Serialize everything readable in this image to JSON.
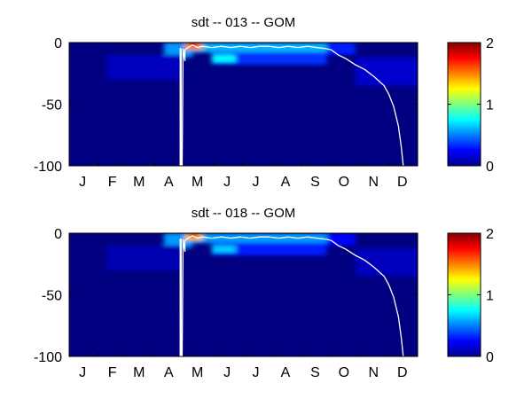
{
  "chart_data": [
    {
      "type": "heatmap",
      "title": "sdt -- 013 -- GOM",
      "xlabel": "",
      "ylabel": "",
      "x_tick_labels": [
        "J",
        "F",
        "M",
        "A",
        "M",
        "J",
        "J",
        "A",
        "S",
        "O",
        "N",
        "D"
      ],
      "x_tick_days": [
        15,
        46,
        74,
        105,
        135,
        166,
        196,
        227,
        258,
        288,
        319,
        349
      ],
      "xlim": [
        1,
        365
      ],
      "ylim": [
        -100,
        0
      ],
      "y_ticks": [
        0,
        -50,
        -100
      ],
      "colorbar": {
        "colormap": "jet",
        "range": [
          0,
          2
        ],
        "ticks": [
          0,
          1,
          2
        ]
      },
      "background_value": 0.0,
      "hotspots": [
        {
          "x_range": [
            100,
            130
          ],
          "y_range": [
            -12,
            0
          ],
          "value": 0.55
        },
        {
          "x_range": [
            130,
            270
          ],
          "y_range": [
            -8,
            0
          ],
          "value": 0.6
        },
        {
          "x_range": [
            122,
            140
          ],
          "y_range": [
            -6,
            0
          ],
          "value": 1.45
        },
        {
          "x_range": [
            127,
            135
          ],
          "y_range": [
            -4,
            0
          ],
          "value": 1.75
        },
        {
          "x_range": [
            150,
            270
          ],
          "y_range": [
            -18,
            -8
          ],
          "value": 0.35
        },
        {
          "x_range": [
            150,
            175
          ],
          "y_range": [
            -16,
            -10
          ],
          "value": 0.75
        },
        {
          "x_range": [
            270,
            300
          ],
          "y_range": [
            -10,
            0
          ],
          "value": 0.3
        },
        {
          "x_range": [
            40,
            120
          ],
          "y_range": [
            -30,
            -10
          ],
          "value": 0.12
        },
        {
          "x_range": [
            300,
            365
          ],
          "y_range": [
            -35,
            -12
          ],
          "value": 0.15
        }
      ],
      "contour_line": {
        "x": [
          117,
          117,
          118,
          118,
          119,
          120,
          122,
          122,
          125,
          130,
          135,
          140,
          150,
          160,
          170,
          180,
          190,
          200,
          210,
          220,
          230,
          240,
          250,
          260,
          270,
          275,
          282,
          290,
          300,
          310,
          320,
          330,
          335,
          340,
          345,
          348,
          350
        ],
        "y": [
          -100,
          -5,
          -5,
          -100,
          -100,
          -5,
          -15,
          -6,
          -4,
          -2,
          -4,
          -3,
          -4,
          -3,
          -4,
          -3,
          -4,
          -3,
          -3,
          -4,
          -3,
          -4,
          -3,
          -4,
          -5,
          -6,
          -10,
          -13,
          -18,
          -22,
          -28,
          -35,
          -42,
          -52,
          -68,
          -85,
          -100
        ]
      }
    },
    {
      "type": "heatmap",
      "title": "sdt -- 018 -- GOM",
      "xlabel": "",
      "ylabel": "",
      "x_tick_labels": [
        "J",
        "F",
        "M",
        "A",
        "M",
        "J",
        "J",
        "A",
        "S",
        "O",
        "N",
        "D"
      ],
      "x_tick_days": [
        15,
        46,
        74,
        105,
        135,
        166,
        196,
        227,
        258,
        288,
        319,
        349
      ],
      "xlim": [
        1,
        365
      ],
      "ylim": [
        -100,
        0
      ],
      "y_ticks": [
        0,
        -50,
        -100
      ],
      "colorbar": {
        "colormap": "jet",
        "range": [
          0,
          2
        ],
        "ticks": [
          0,
          1,
          2
        ]
      },
      "background_value": 0.0,
      "hotspots": [
        {
          "x_range": [
            100,
            130
          ],
          "y_range": [
            -12,
            0
          ],
          "value": 0.55
        },
        {
          "x_range": [
            130,
            270
          ],
          "y_range": [
            -8,
            0
          ],
          "value": 0.55
        },
        {
          "x_range": [
            122,
            140
          ],
          "y_range": [
            -6,
            0
          ],
          "value": 1.35
        },
        {
          "x_range": [
            127,
            135
          ],
          "y_range": [
            -4,
            0
          ],
          "value": 1.65
        },
        {
          "x_range": [
            150,
            270
          ],
          "y_range": [
            -18,
            -8
          ],
          "value": 0.3
        },
        {
          "x_range": [
            150,
            175
          ],
          "y_range": [
            -16,
            -10
          ],
          "value": 0.65
        },
        {
          "x_range": [
            270,
            300
          ],
          "y_range": [
            -10,
            0
          ],
          "value": 0.25
        },
        {
          "x_range": [
            40,
            120
          ],
          "y_range": [
            -30,
            -10
          ],
          "value": 0.1
        },
        {
          "x_range": [
            300,
            365
          ],
          "y_range": [
            -35,
            -12
          ],
          "value": 0.12
        }
      ],
      "contour_line": {
        "x": [
          117,
          117,
          118,
          118,
          119,
          120,
          122,
          122,
          125,
          130,
          135,
          140,
          150,
          160,
          170,
          180,
          190,
          200,
          210,
          220,
          230,
          240,
          250,
          260,
          270,
          275,
          282,
          290,
          300,
          310,
          320,
          330,
          335,
          340,
          345,
          348,
          350
        ],
        "y": [
          -100,
          -5,
          -5,
          -100,
          -100,
          -5,
          -15,
          -6,
          -4,
          -2,
          -4,
          -3,
          -4,
          -3,
          -4,
          -3,
          -4,
          -3,
          -3,
          -4,
          -3,
          -4,
          -3,
          -4,
          -5,
          -6,
          -10,
          -13,
          -18,
          -22,
          -28,
          -35,
          -42,
          -52,
          -68,
          -85,
          -100
        ]
      }
    }
  ]
}
